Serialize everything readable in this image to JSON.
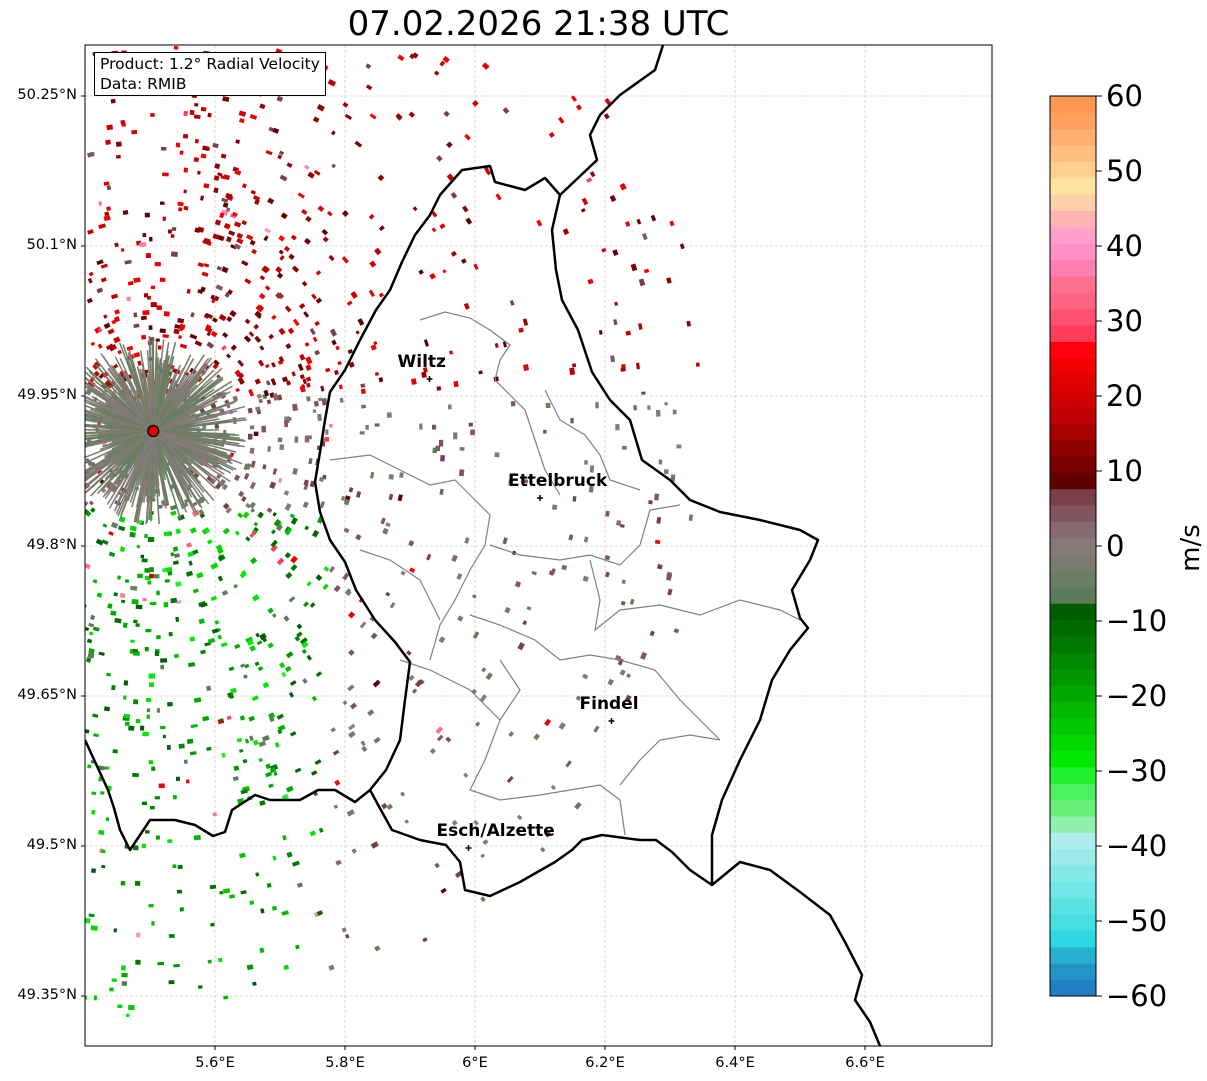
{
  "title": "07.02.2026 21:38 UTC",
  "info": {
    "product": "Product: 1.2° Radial Velocity",
    "data": "Data: RMIB"
  },
  "axes": {
    "lon_ticks": [
      {
        "v": 5.6,
        "label": "5.6°E"
      },
      {
        "v": 5.8,
        "label": "5.8°E"
      },
      {
        "v": 6.0,
        "label": "6°E"
      },
      {
        "v": 6.2,
        "label": "6.2°E"
      },
      {
        "v": 6.4,
        "label": "6.4°E"
      },
      {
        "v": 6.6,
        "label": "6.6°E"
      }
    ],
    "lat_ticks": [
      {
        "v": 50.25,
        "label": "50.25°N"
      },
      {
        "v": 50.1,
        "label": "50.1°N"
      },
      {
        "v": 49.95,
        "label": "49.95°N"
      },
      {
        "v": 49.8,
        "label": "49.8°N"
      },
      {
        "v": 49.65,
        "label": "49.65°N"
      },
      {
        "v": 49.5,
        "label": "49.5°N"
      },
      {
        "v": 49.35,
        "label": "49.35°N"
      }
    ],
    "lon_range": [
      5.4,
      6.8
    ],
    "lat_range": [
      49.3,
      50.301
    ]
  },
  "radar_site": {
    "lon": 5.505,
    "lat": 49.915
  },
  "cities": [
    {
      "name": "Wiltz",
      "lon": 5.93,
      "lat": 49.967
    },
    {
      "name": "Ettelbruck",
      "lon": 6.1,
      "lat": 49.848
    },
    {
      "name": "Findel",
      "lon": 6.21,
      "lat": 49.625
    },
    {
      "name": "Esch/Alzette",
      "lon": 5.99,
      "lat": 49.498
    }
  ],
  "colorbar": {
    "label": "m/s",
    "range": [
      -60,
      60
    ],
    "ticks": [
      {
        "v": 60,
        "label": "60"
      },
      {
        "v": 50,
        "label": "50"
      },
      {
        "v": 40,
        "label": "40"
      },
      {
        "v": 30,
        "label": "30"
      },
      {
        "v": 20,
        "label": "20"
      },
      {
        "v": 10,
        "label": "10"
      },
      {
        "v": 0,
        "label": "0"
      },
      {
        "v": -10,
        "label": "−10"
      },
      {
        "v": -20,
        "label": "−20"
      },
      {
        "v": -30,
        "label": "−30"
      },
      {
        "v": -40,
        "label": "−40"
      },
      {
        "v": -50,
        "label": "−50"
      },
      {
        "v": -60,
        "label": "−60"
      }
    ],
    "colors": [
      "#1f7fc2",
      "#2394c8",
      "#28b0d0",
      "#2ed8e0",
      "#45dfe0",
      "#5ce2e2",
      "#70e6e6",
      "#85e8e8",
      "#9aeaea",
      "#b0eeee",
      "#90f0b0",
      "#6af07a",
      "#4cf060",
      "#20f030",
      "#00e800",
      "#00d800",
      "#00c800",
      "#00b800",
      "#00a800",
      "#009800",
      "#008800",
      "#007800",
      "#006c00",
      "#005c00",
      "#5a7a5a",
      "#6a7f62",
      "#7a7a70",
      "#857a78",
      "#856a75",
      "#805560",
      "#7a4048",
      "#600000",
      "#780000",
      "#900000",
      "#a80000",
      "#c00000",
      "#d00000",
      "#e00000",
      "#f00000",
      "#ff0010",
      "#ff3c5a",
      "#ff5070",
      "#ff6482",
      "#ff7090",
      "#ff80b0",
      "#ff90c8",
      "#ffa0c8",
      "#ffb4b4",
      "#ffd0a8",
      "#ffe4a0",
      "#ffd090",
      "#ffc080",
      "#ffb070",
      "#ffa060",
      "#ff9850"
    ]
  }
}
